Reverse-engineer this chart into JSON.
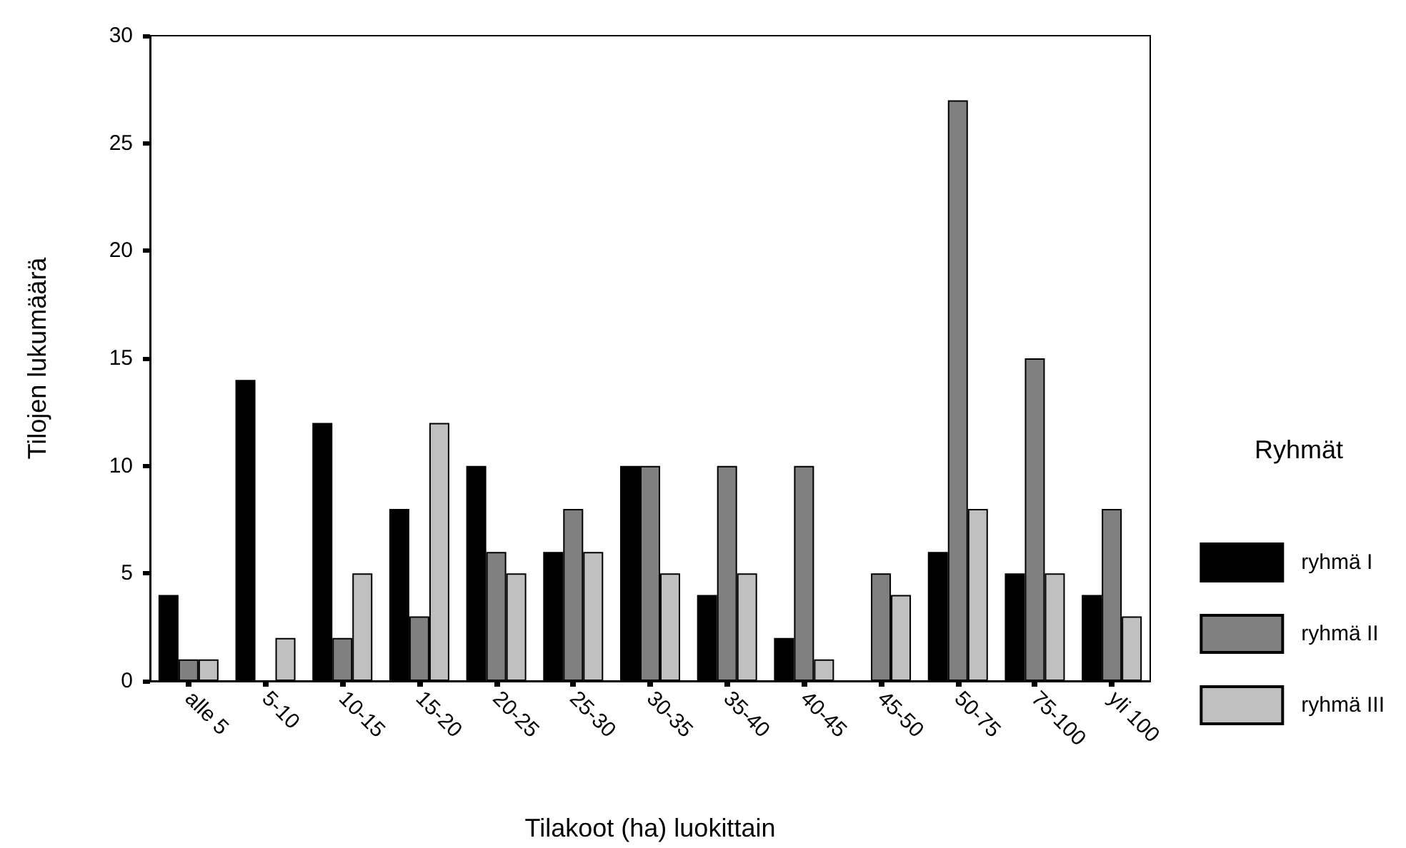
{
  "chart_data": {
    "type": "bar",
    "xlabel": "Tilakoot (ha) luokittain",
    "ylabel": "Tilojen lukumäärä",
    "legend_title": "Ryhmät",
    "categories": [
      "alle 5",
      "5-10",
      "10-15",
      "15-20",
      "20-25",
      "25-30",
      "30-35",
      "35-40",
      "40-45",
      "45-50",
      "50-75",
      "75-100",
      "yli 100"
    ],
    "series": [
      {
        "name": "ryhmä I",
        "color": "#000000",
        "values": [
          4,
          14,
          12,
          8,
          10,
          6,
          10,
          4,
          2,
          null,
          6,
          5,
          4
        ]
      },
      {
        "name": "ryhmä II",
        "color": "#808080",
        "values": [
          1,
          null,
          2,
          3,
          6,
          8,
          10,
          10,
          10,
          5,
          27,
          15,
          8
        ]
      },
      {
        "name": "ryhmä III",
        "color": "#c0c0c0",
        "values": [
          1,
          2,
          5,
          12,
          5,
          6,
          5,
          5,
          1,
          4,
          8,
          5,
          3
        ]
      }
    ],
    "ylim": [
      0,
      30
    ],
    "yticks": [
      0,
      5,
      10,
      15,
      20,
      25,
      30
    ],
    "grid": false,
    "legend": "right"
  }
}
